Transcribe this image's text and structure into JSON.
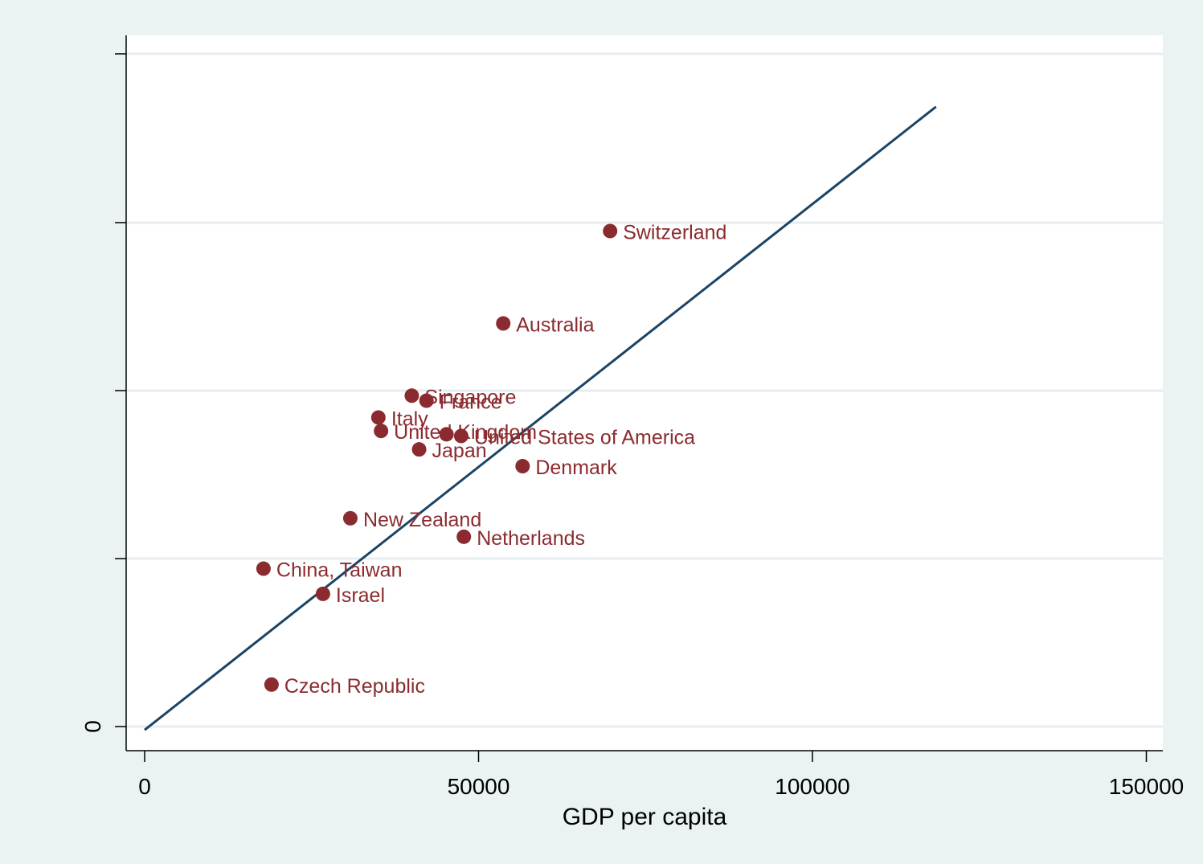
{
  "chart_data": {
    "type": "scatter",
    "title": "",
    "xlabel": "GDP per capita",
    "ylabel": "",
    "xlim": [
      0,
      150000
    ],
    "x_ticks": [
      0,
      50000,
      100000,
      150000
    ],
    "x_tick_labels": [
      "0",
      "50000",
      "100000",
      "150000"
    ],
    "y_tick_labels": [
      "0"
    ],
    "grid": "horizontal",
    "colors": {
      "points": "#8b2b2f",
      "fit_line": "#1b4466",
      "grid": "#e6eef0",
      "background": "#eaf2f3",
      "plot_background": "#ffffff"
    },
    "points": [
      {
        "label": "Switzerland",
        "x": 69700,
        "y": 0.295
      },
      {
        "label": "Australia",
        "x": 53700,
        "y": 0.24
      },
      {
        "label": "Singapore",
        "x": 40000,
        "y": 0.197
      },
      {
        "label": "France",
        "x": 42200,
        "y": 0.194
      },
      {
        "label": "Italy",
        "x": 35000,
        "y": 0.184
      },
      {
        "label": "United Kingdom",
        "x": 35400,
        "y": 0.176
      },
      {
        "label": "United States of America",
        "x": 47400,
        "y": 0.173
      },
      {
        "label": "Japan",
        "x": 41100,
        "y": 0.165
      },
      {
        "label": "Denmark",
        "x": 56600,
        "y": 0.155
      },
      {
        "label": "New Zealand",
        "x": 30800,
        "y": 0.124
      },
      {
        "label": "Netherlands",
        "x": 47800,
        "y": 0.113
      },
      {
        "label": "China, Taiwan",
        "x": 17800,
        "y": 0.094
      },
      {
        "label": "Israel",
        "x": 26700,
        "y": 0.079
      },
      {
        "label": "Czech Republic",
        "x": 19000,
        "y": 0.025
      }
    ],
    "extra_points": [
      {
        "x": 45200,
        "y": 0.174
      }
    ],
    "fit_line": {
      "x": [
        0,
        118500
      ],
      "y": [
        -0.002,
        0.369
      ]
    }
  }
}
